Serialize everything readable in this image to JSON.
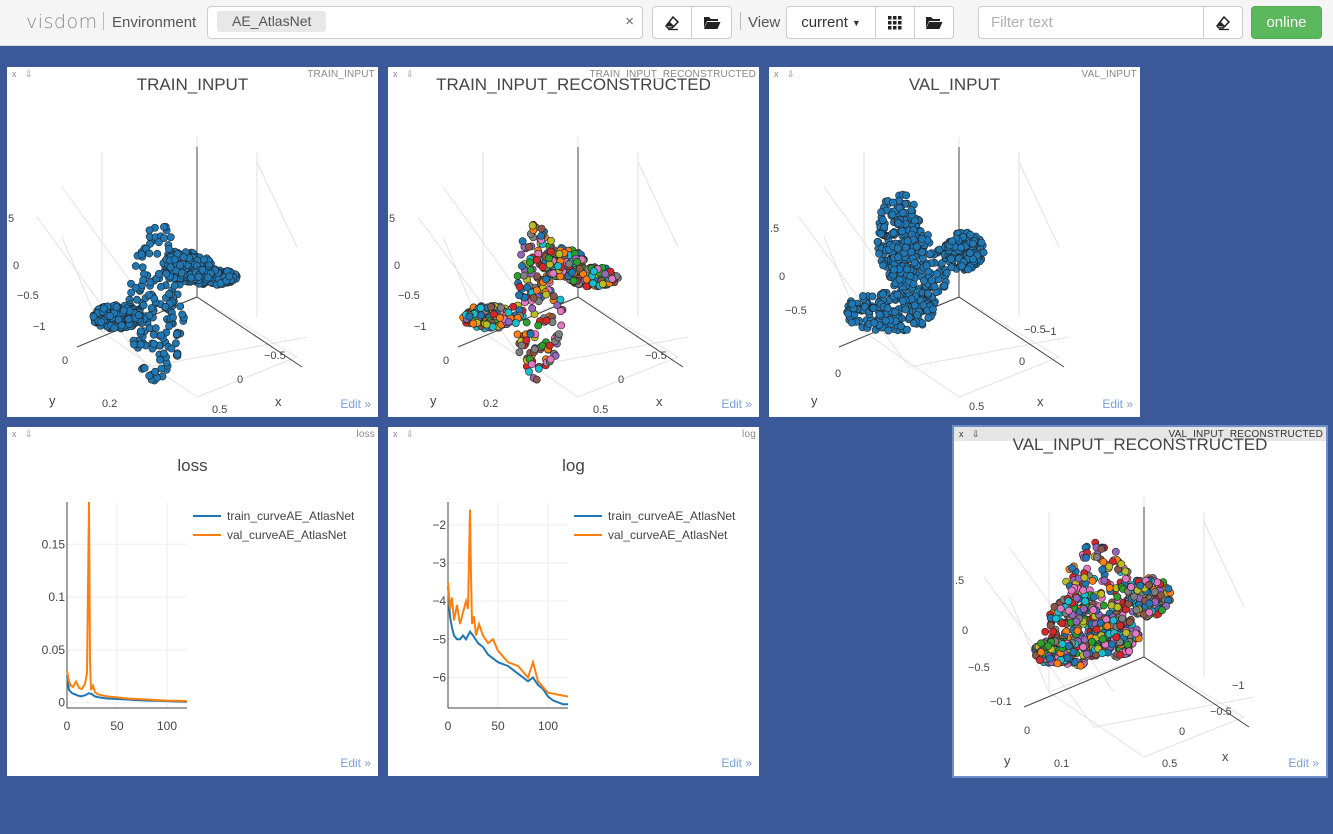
{
  "navbar": {
    "brand": "visdom",
    "environment_label": "Environment",
    "environment_chip": "AE_AtlasNet",
    "clear_symbol": "×",
    "view_label": "View",
    "view_current": "current",
    "filter_placeholder": "Filter text",
    "status": "online"
  },
  "panes": [
    {
      "id": "train_input",
      "bar_title": "TRAIN_INPUT",
      "title": "TRAIN_INPUT",
      "edit": "Edit »",
      "type": "scatter3d",
      "axis_labels": {
        "x": "x",
        "y": "y"
      },
      "ticks": [
        "5",
        "0",
        "−0.5",
        "−1",
        "0",
        "0.2",
        "0.5",
        "0",
        "−0.5"
      ]
    },
    {
      "id": "train_input_reconstructed",
      "bar_title": "TRAIN_INPUT_RECONSTRUCTED",
      "title": "TRAIN_INPUT_RECONSTRUCTED",
      "edit": "Edit »",
      "type": "scatter3d",
      "axis_labels": {
        "x": "x",
        "y": "y"
      },
      "ticks": [
        "5",
        "0",
        "−0.5",
        "−1",
        "0",
        "0.2",
        "0.5",
        "0",
        "−0.5"
      ]
    },
    {
      "id": "val_input",
      "bar_title": "VAL_INPUT",
      "title": "VAL_INPUT",
      "edit": "Edit »",
      "type": "scatter3d",
      "axis_labels": {
        "x": "x",
        "y": "y"
      },
      "ticks": [
        ".5",
        "0",
        "−0.5",
        "0",
        "0.5",
        "0",
        "−0.5",
        "−1"
      ]
    },
    {
      "id": "val_input_reconstructed",
      "bar_title": "VAL_INPUT_RECONSTRUCTED",
      "title": "VAL_INPUT_RECONSTRUCTED",
      "edit": "Edit »",
      "type": "scatter3d",
      "axis_labels": {
        "x": "x",
        "y": "y"
      },
      "ticks": [
        ".5",
        "0",
        "−0.5",
        "−0.1",
        "0",
        "0.1",
        "0.5",
        "0",
        "−0.5",
        "−1"
      ]
    }
  ],
  "colors": {
    "background": "#3b5998",
    "online": "#5cb85c",
    "point_blue": "#1f77b4",
    "train_curve": "#1f77b4",
    "val_curve": "#ff7f0e",
    "edit_link": "#7a9fd6"
  },
  "chart_data": [
    {
      "id": "loss",
      "bar_title": "loss",
      "type": "line",
      "title": "loss",
      "edit": "Edit »",
      "xlim": [
        0,
        120
      ],
      "ylim": [
        -0.005,
        0.19
      ],
      "xticks": [
        0,
        50,
        100
      ],
      "yticks": [
        0,
        0.05,
        0.1,
        0.15
      ],
      "ytick_labels": [
        "0",
        "0.05",
        "0.1",
        "0.15"
      ],
      "legend_position": "top-right",
      "series": [
        {
          "name": "train_curveAE_AtlasNet",
          "color": "#1f77b4",
          "x": [
            0,
            2,
            5,
            8,
            10,
            14,
            18,
            22,
            25,
            28,
            32,
            40,
            50,
            60,
            70,
            80,
            90,
            100,
            110,
            120
          ],
          "y": [
            0.026,
            0.012,
            0.009,
            0.008,
            0.007,
            0.006,
            0.007,
            0.009,
            0.008,
            0.006,
            0.005,
            0.004,
            0.0035,
            0.003,
            0.0025,
            0.002,
            0.0018,
            0.0015,
            0.0012,
            0.001
          ]
        },
        {
          "name": "val_curveAE_AtlasNet",
          "color": "#ff7f0e",
          "x": [
            0,
            2,
            4,
            6,
            9,
            12,
            15,
            18,
            20,
            22,
            23,
            24,
            26,
            28,
            31,
            35,
            40,
            50,
            60,
            70,
            80,
            90,
            100,
            110,
            120
          ],
          "y": [
            0.03,
            0.02,
            0.016,
            0.015,
            0.02,
            0.014,
            0.013,
            0.018,
            0.028,
            0.19,
            0.04,
            0.012,
            0.016,
            0.01,
            0.008,
            0.007,
            0.006,
            0.005,
            0.004,
            0.0035,
            0.003,
            0.0025,
            0.002,
            0.0018,
            0.0015
          ]
        }
      ]
    },
    {
      "id": "log",
      "bar_title": "log",
      "type": "line",
      "title": "log",
      "edit": "Edit »",
      "xlim": [
        0,
        120
      ],
      "ylim": [
        -6.8,
        -1.4
      ],
      "xticks": [
        0,
        50,
        100
      ],
      "yticks": [
        -2,
        -3,
        -4,
        -5,
        -6
      ],
      "ytick_labels": [
        "−2",
        "−3",
        "−4",
        "−5",
        "−6"
      ],
      "legend_position": "top-right",
      "series": [
        {
          "name": "train_curveAE_AtlasNet",
          "color": "#1f77b4",
          "x": [
            0,
            2,
            4,
            6,
            9,
            12,
            15,
            18,
            22,
            25,
            30,
            35,
            40,
            50,
            60,
            70,
            80,
            85,
            90,
            95,
            100,
            105,
            110,
            115,
            120
          ],
          "y": [
            -3.6,
            -4.4,
            -4.7,
            -4.9,
            -5.0,
            -5.0,
            -4.9,
            -5.0,
            -4.8,
            -4.9,
            -5.1,
            -5.2,
            -5.4,
            -5.6,
            -5.7,
            -5.9,
            -6.1,
            -6.0,
            -6.2,
            -6.3,
            -6.5,
            -6.6,
            -6.65,
            -6.7,
            -6.7
          ]
        },
        {
          "name": "val_curveAE_AtlasNet",
          "color": "#ff7f0e",
          "x": [
            0,
            2,
            4,
            6,
            9,
            12,
            15,
            18,
            20,
            22,
            23,
            24,
            26,
            28,
            31,
            35,
            40,
            45,
            50,
            60,
            70,
            80,
            85,
            90,
            100,
            110,
            120
          ],
          "y": [
            -3.5,
            -4.2,
            -3.9,
            -4.5,
            -4.1,
            -4.6,
            -4.3,
            -4.0,
            -4.2,
            -1.6,
            -3.3,
            -4.6,
            -4.4,
            -4.9,
            -4.6,
            -4.9,
            -5.1,
            -5.0,
            -5.3,
            -5.6,
            -5.7,
            -6.0,
            -5.6,
            -6.1,
            -6.4,
            -6.45,
            -6.5
          ]
        }
      ]
    }
  ]
}
